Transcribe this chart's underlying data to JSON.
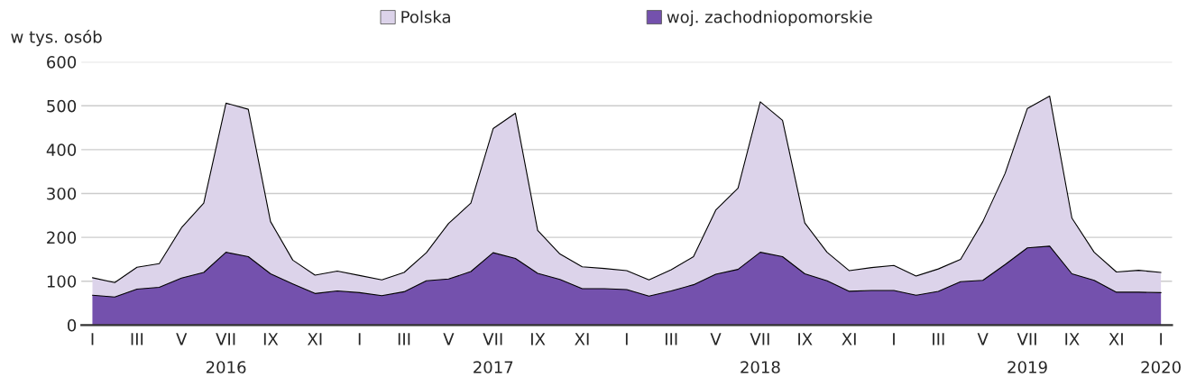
{
  "chart_data": {
    "type": "area",
    "ylabel": "w tys. osób",
    "categories": [
      "I",
      null,
      "III",
      null,
      "V",
      null,
      "VII\n2016",
      null,
      "IX",
      null,
      "XI",
      null,
      "I",
      null,
      "III",
      null,
      "V",
      null,
      "VII\n2017",
      null,
      "IX",
      null,
      "XI",
      null,
      "I",
      null,
      "III",
      null,
      "V",
      null,
      "VII\n2018",
      null,
      "IX",
      null,
      "XI",
      null,
      "I",
      null,
      "III",
      null,
      "V",
      null,
      "VII\n2019",
      null,
      "IX",
      null,
      "XI",
      null,
      "I\n2020"
    ],
    "series": [
      {
        "name": "Polska",
        "color": "#dcd3ea",
        "values": [
          108,
          97,
          132,
          140,
          222,
          278,
          506,
          492,
          236,
          148,
          114,
          123,
          113,
          103,
          120,
          165,
          232,
          278,
          448,
          483,
          216,
          162,
          133,
          129,
          124,
          103,
          126,
          156,
          262,
          312,
          509,
          467,
          233,
          166,
          124,
          131,
          136,
          112,
          128,
          150,
          236,
          346,
          494,
          522,
          244,
          166,
          121,
          125,
          120
        ]
      },
      {
        "name": "woj. zachodniopomorskie",
        "color": "#7451ad",
        "values": [
          68,
          64,
          82,
          86,
          107,
          120,
          166,
          156,
          117,
          94,
          72,
          78,
          74,
          67,
          76,
          101,
          105,
          122,
          165,
          152,
          118,
          104,
          83,
          83,
          81,
          66,
          78,
          92,
          116,
          127,
          166,
          156,
          117,
          101,
          77,
          79,
          79,
          68,
          77,
          99,
          102,
          138,
          176,
          180,
          117,
          102,
          75,
          75,
          74
        ]
      }
    ],
    "ylim": [
      0,
      600
    ],
    "yticks": [
      0,
      100,
      200,
      300,
      400,
      500,
      600
    ],
    "grid": "y",
    "legend": "top"
  }
}
